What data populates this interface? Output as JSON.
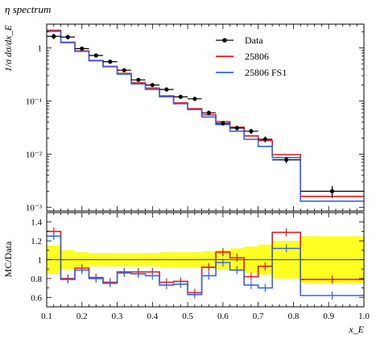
{
  "chart_data": {
    "type": "line",
    "title": "η spectrum",
    "xlabel": "x_E",
    "main": {
      "ylabel": "1/σ dσ/dx_E",
      "yscale": "log",
      "ylim": [
        0.00085,
        2.8
      ],
      "ytick_labels": [
        {
          "v": 1,
          "label": "1"
        },
        {
          "v": 0.1,
          "label": "10⁻¹"
        },
        {
          "v": 0.01,
          "label": "10⁻²"
        },
        {
          "v": 0.001,
          "label": "10⁻³"
        }
      ]
    },
    "ratio": {
      "ylabel": "MC/Data",
      "ylim": [
        0.5,
        1.5
      ],
      "ytick_labels": [
        {
          "v": 0.6,
          "label": "0.6"
        },
        {
          "v": 0.8,
          "label": "0.8"
        },
        {
          "v": 1.0,
          "label": "1"
        },
        {
          "v": 1.2,
          "label": "1.2"
        },
        {
          "v": 1.4,
          "label": "1.4"
        }
      ]
    },
    "xlim": [
      0.1,
      1.0
    ],
    "xtick_labels": [
      "0.1",
      "0.2",
      "0.3",
      "0.4",
      "0.5",
      "0.6",
      "0.7",
      "0.8",
      "0.9",
      "1.0"
    ],
    "legend_position": "top-right",
    "bin_edges": [
      0.1,
      0.14,
      0.18,
      0.22,
      0.26,
      0.3,
      0.34,
      0.38,
      0.42,
      0.46,
      0.5,
      0.54,
      0.58,
      0.62,
      0.66,
      0.7,
      0.74,
      0.82,
      1.0
    ],
    "data": {
      "name": "Data",
      "color": "#000000",
      "x": [
        0.12,
        0.16,
        0.2,
        0.24,
        0.28,
        0.32,
        0.36,
        0.4,
        0.44,
        0.48,
        0.52,
        0.56,
        0.6,
        0.64,
        0.68,
        0.72,
        0.78,
        0.91
      ],
      "y": [
        1.65,
        1.6,
        0.97,
        0.72,
        0.55,
        0.38,
        0.25,
        0.2,
        0.165,
        0.12,
        0.11,
        0.06,
        0.038,
        0.031,
        0.027,
        0.019,
        0.0078,
        0.002
      ],
      "yerr_rel": [
        0.12,
        0.1,
        0.08,
        0.08,
        0.08,
        0.08,
        0.08,
        0.08,
        0.09,
        0.09,
        0.09,
        0.1,
        0.1,
        0.1,
        0.11,
        0.13,
        0.14,
        0.25
      ]
    },
    "series": [
      {
        "name": "25806",
        "color": "#e41a1c",
        "y": [
          2.15,
          1.28,
          0.88,
          0.58,
          0.45,
          0.33,
          0.22,
          0.175,
          0.125,
          0.092,
          0.072,
          0.055,
          0.041,
          0.032,
          0.022,
          0.018,
          0.0098,
          0.0016
        ],
        "ratio": [
          1.3,
          0.8,
          0.91,
          0.81,
          0.76,
          0.87,
          0.87,
          0.87,
          0.76,
          0.77,
          0.65,
          0.92,
          1.08,
          1.02,
          0.82,
          0.93,
          1.29,
          0.79
        ]
      },
      {
        "name": "25806 FS1",
        "color": "#3366e6",
        "y": [
          2.05,
          1.25,
          0.86,
          0.57,
          0.44,
          0.32,
          0.21,
          0.165,
          0.12,
          0.089,
          0.069,
          0.05,
          0.036,
          0.027,
          0.019,
          0.014,
          0.0086,
          0.0013
        ],
        "ratio": [
          1.25,
          0.79,
          0.89,
          0.8,
          0.75,
          0.86,
          0.85,
          0.83,
          0.73,
          0.74,
          0.63,
          0.83,
          0.97,
          0.89,
          0.73,
          0.7,
          1.12,
          0.62
        ]
      }
    ],
    "ratio_band": {
      "color": "#ffff22",
      "lo": [
        0.85,
        0.9,
        0.92,
        0.93,
        0.93,
        0.93,
        0.93,
        0.93,
        0.92,
        0.92,
        0.92,
        0.91,
        0.9,
        0.88,
        0.86,
        0.84,
        0.8,
        0.75
      ],
      "hi": [
        1.15,
        1.1,
        1.08,
        1.07,
        1.07,
        1.07,
        1.07,
        1.07,
        1.08,
        1.08,
        1.08,
        1.09,
        1.1,
        1.12,
        1.14,
        1.16,
        1.2,
        1.25
      ]
    }
  }
}
